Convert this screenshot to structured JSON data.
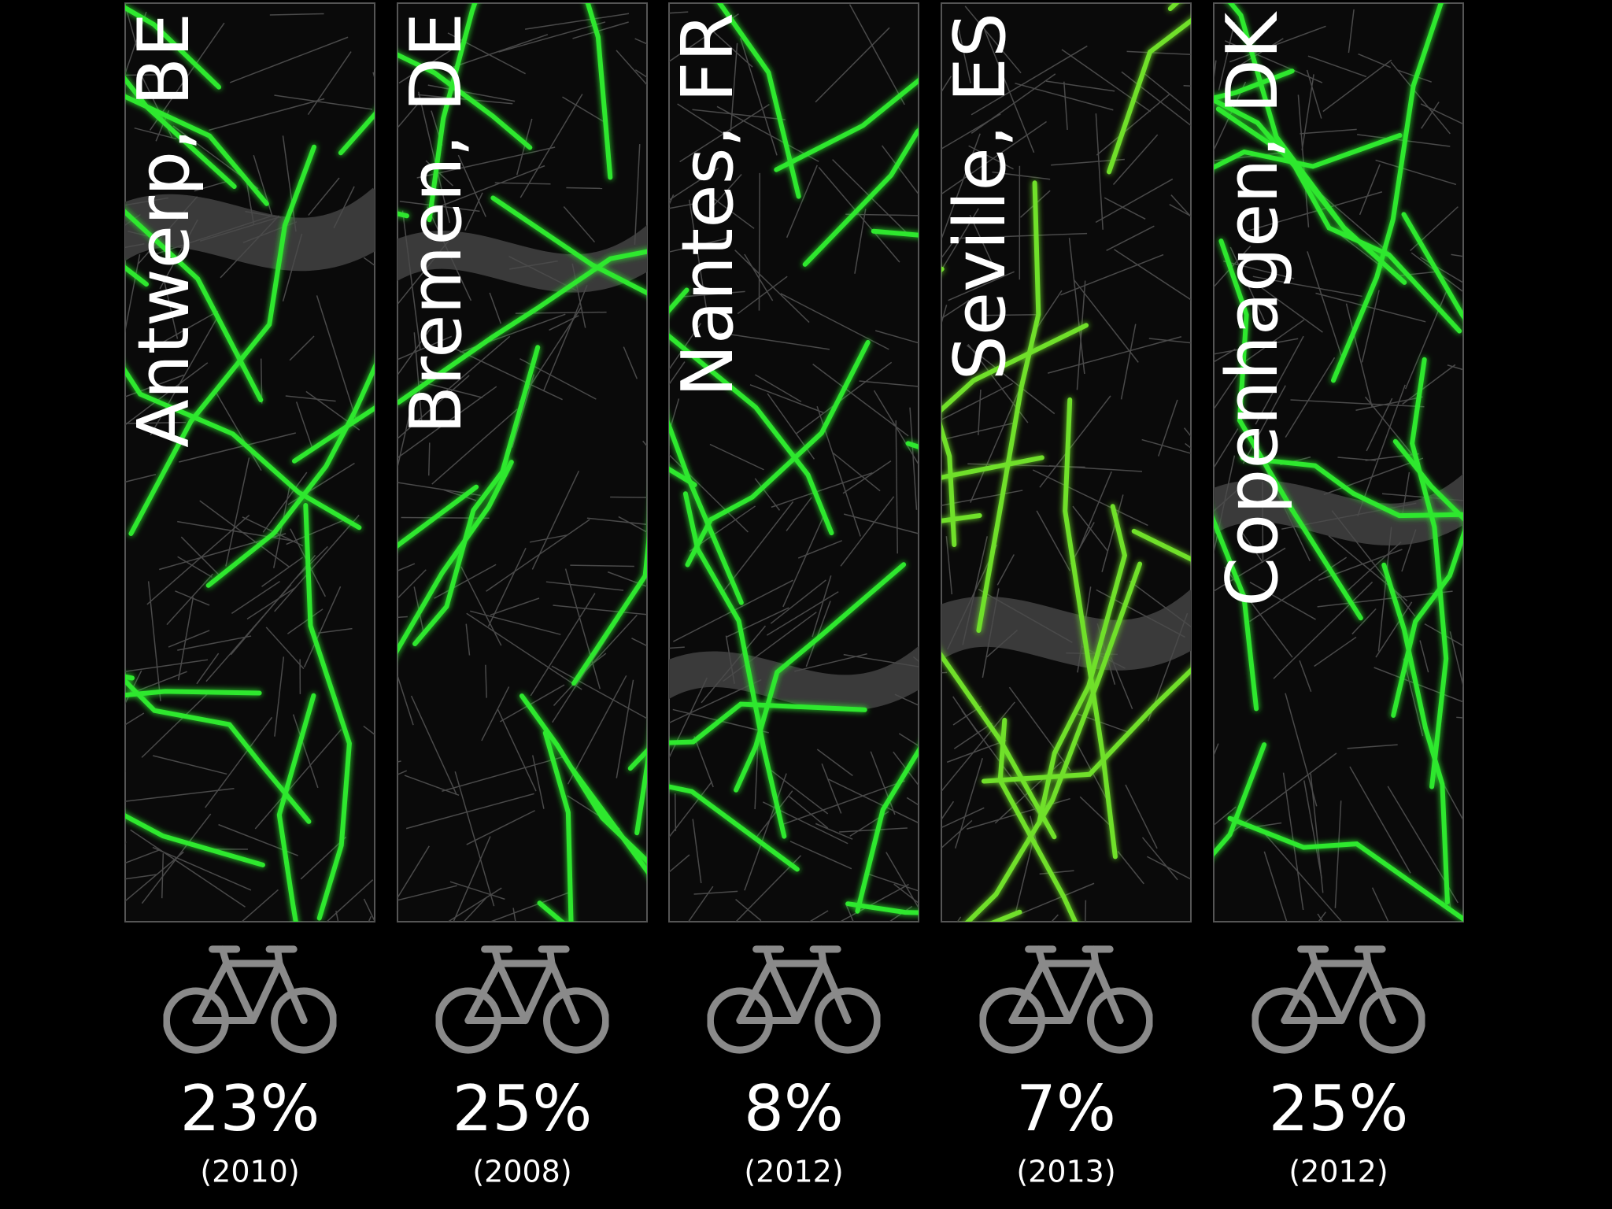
{
  "panels": [
    {
      "city": "Antwerp, BE",
      "share": "23%",
      "year": "(2010)"
    },
    {
      "city": "Bremen, DE",
      "share": "25%",
      "year": "(2008)"
    },
    {
      "city": "Nantes, FR",
      "share": "8%",
      "year": "(2012)"
    },
    {
      "city": "Seville, ES",
      "share": "7%",
      "year": "(2013)"
    },
    {
      "city": "Copenhagen, DK",
      "share": "25%",
      "year": "(2012)"
    }
  ]
}
